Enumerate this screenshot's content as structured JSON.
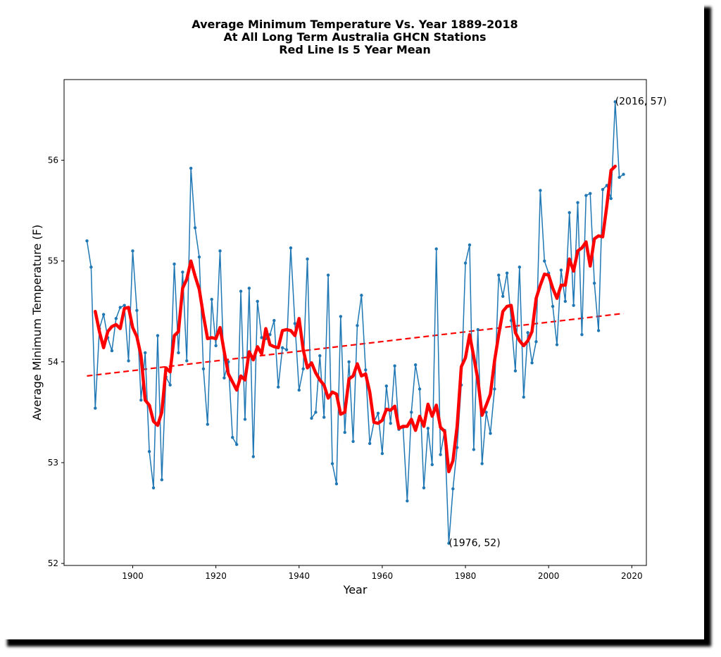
{
  "chart_data": {
    "type": "line",
    "title": [
      "Average Minimum Temperature Vs. Year 1889-2018",
      "At All Long Term Australia GHCN Stations",
      "Red Line Is 5 Year Mean"
    ],
    "xlabel": "Year",
    "ylabel": "Average Minimum Temperature (F)",
    "xlim": [
      1883.5,
      2023.5
    ],
    "ylim": [
      51.98,
      56.8
    ],
    "xticks": [
      1900,
      1920,
      1940,
      1960,
      1980,
      2000,
      2020
    ],
    "yticks": [
      52,
      53,
      54,
      55,
      56
    ],
    "grid": false,
    "x": [
      1889,
      1890,
      1891,
      1892,
      1893,
      1894,
      1895,
      1896,
      1897,
      1898,
      1899,
      1900,
      1901,
      1902,
      1903,
      1904,
      1905,
      1906,
      1907,
      1908,
      1909,
      1910,
      1911,
      1912,
      1913,
      1914,
      1915,
      1916,
      1917,
      1918,
      1919,
      1920,
      1921,
      1922,
      1923,
      1924,
      1925,
      1926,
      1927,
      1928,
      1929,
      1930,
      1931,
      1932,
      1933,
      1934,
      1935,
      1936,
      1937,
      1938,
      1939,
      1940,
      1941,
      1942,
      1943,
      1944,
      1945,
      1946,
      1947,
      1948,
      1949,
      1950,
      1951,
      1952,
      1953,
      1954,
      1955,
      1956,
      1957,
      1958,
      1959,
      1960,
      1961,
      1962,
      1963,
      1964,
      1965,
      1966,
      1967,
      1968,
      1969,
      1970,
      1971,
      1972,
      1973,
      1974,
      1975,
      1976,
      1977,
      1978,
      1979,
      1980,
      1981,
      1982,
      1983,
      1984,
      1985,
      1986,
      1987,
      1988,
      1989,
      1990,
      1991,
      1992,
      1993,
      1994,
      1995,
      1996,
      1997,
      1998,
      1999,
      2000,
      2001,
      2002,
      2003,
      2004,
      2005,
      2006,
      2007,
      2008,
      2009,
      2010,
      2011,
      2012,
      2013,
      2014,
      2015,
      2016,
      2017,
      2018
    ],
    "series": [
      {
        "role": "annual",
        "color": "#1f77b4",
        "values": [
          55.2,
          54.94,
          53.54,
          54.33,
          54.47,
          54.24,
          54.11,
          54.43,
          54.54,
          54.56,
          54.01,
          55.1,
          54.51,
          53.62,
          54.09,
          53.11,
          52.75,
          54.26,
          52.83,
          53.85,
          53.77,
          54.97,
          54.09,
          54.89,
          54.01,
          55.92,
          55.33,
          55.04,
          53.93,
          53.38,
          54.62,
          54.16,
          55.1,
          53.84,
          54.0,
          53.25,
          53.18,
          54.7,
          53.43,
          54.73,
          53.06,
          54.6,
          54.24,
          54.23,
          54.27,
          54.41,
          53.75,
          54.14,
          54.12,
          55.13,
          54.38,
          53.72,
          53.93,
          55.02,
          53.44,
          53.5,
          54.06,
          53.45,
          54.86,
          52.99,
          52.79,
          54.45,
          53.3,
          54.0,
          53.21,
          54.36,
          54.66,
          53.92,
          53.19,
          53.4,
          53.49,
          53.09,
          53.76,
          53.39,
          53.96,
          53.33,
          53.35,
          52.62,
          53.5,
          53.97,
          53.73,
          52.75,
          53.34,
          52.98,
          55.12,
          53.08,
          53.32,
          52.2,
          52.74,
          53.15,
          53.77,
          54.98,
          55.16,
          53.13,
          54.32,
          52.99,
          53.5,
          53.29,
          53.73,
          54.86,
          54.65,
          54.88,
          54.41,
          53.91,
          54.94,
          53.65,
          54.29,
          53.99,
          54.2,
          55.7,
          55.0,
          54.88,
          54.55,
          54.17,
          54.91,
          54.6,
          55.48,
          54.56,
          55.58,
          54.27,
          55.65,
          55.67,
          54.78,
          54.31,
          55.71,
          55.75,
          55.62,
          56.58,
          55.83,
          55.86
        ]
      },
      {
        "role": "5 year mean",
        "color": "#ff0000",
        "x": [
          1891,
          1892,
          1893,
          1894,
          1895,
          1896,
          1897,
          1898,
          1899,
          1900,
          1901,
          1902,
          1903,
          1904,
          1905,
          1906,
          1907,
          1908,
          1909,
          1910,
          1911,
          1912,
          1913,
          1914,
          1915,
          1916,
          1917,
          1918,
          1919,
          1920,
          1921,
          1922,
          1923,
          1924,
          1925,
          1926,
          1927,
          1928,
          1929,
          1930,
          1931,
          1932,
          1933,
          1934,
          1935,
          1936,
          1937,
          1938,
          1939,
          1940,
          1941,
          1942,
          1943,
          1944,
          1945,
          1946,
          1947,
          1948,
          1949,
          1950,
          1951,
          1952,
          1953,
          1954,
          1955,
          1956,
          1957,
          1958,
          1959,
          1960,
          1961,
          1962,
          1963,
          1964,
          1965,
          1966,
          1967,
          1968,
          1969,
          1970,
          1971,
          1972,
          1973,
          1974,
          1975,
          1976,
          1977,
          1978,
          1979,
          1980,
          1981,
          1982,
          1983,
          1984,
          1985,
          1986,
          1987,
          1988,
          1989,
          1990,
          1991,
          1992,
          1993,
          1994,
          1995,
          1996,
          1997,
          1998,
          1999,
          2000,
          2001,
          2002,
          2003,
          2004,
          2005,
          2006,
          2007,
          2008,
          2009,
          2010,
          2011,
          2012,
          2013,
          2014,
          2015,
          2016
        ],
        "values": [
          54.5,
          54.3,
          54.14,
          54.3,
          54.35,
          54.37,
          54.33,
          54.53,
          54.54,
          54.34,
          54.25,
          54.06,
          53.62,
          53.57,
          53.41,
          53.37,
          53.5,
          53.94,
          53.9,
          54.26,
          54.3,
          54.73,
          54.82,
          55.0,
          54.85,
          54.72,
          54.46,
          54.23,
          54.24,
          54.23,
          54.34,
          54.1,
          53.88,
          53.8,
          53.72,
          53.86,
          53.82,
          54.1,
          54.02,
          54.15,
          54.08,
          54.33,
          54.17,
          54.15,
          54.14,
          54.31,
          54.32,
          54.31,
          54.26,
          54.43,
          54.12,
          53.94,
          53.99,
          53.89,
          53.82,
          53.77,
          53.64,
          53.7,
          53.68,
          53.48,
          53.5,
          53.83,
          53.86,
          53.98,
          53.86,
          53.88,
          53.7,
          53.4,
          53.39,
          53.42,
          53.53,
          53.52,
          53.56,
          53.34,
          53.36,
          53.36,
          53.43,
          53.32,
          53.46,
          53.36,
          53.58,
          53.46,
          53.57,
          53.35,
          53.31,
          52.91,
          53.02,
          53.36,
          53.95,
          54.04,
          54.27,
          54.05,
          53.82,
          53.47,
          53.57,
          53.68,
          54.01,
          54.27,
          54.5,
          54.55,
          54.56,
          54.29,
          54.21,
          54.16,
          54.21,
          54.3,
          54.63,
          54.76,
          54.87,
          54.86,
          54.73,
          54.63,
          54.76,
          54.76,
          55.02,
          54.9,
          55.1,
          55.13,
          55.19,
          54.95,
          55.22,
          55.25,
          55.24,
          55.55,
          55.9,
          55.94
        ]
      },
      {
        "role": "trend",
        "color": "#ff0000",
        "x": [
          1889,
          2018
        ],
        "values": [
          53.86,
          54.48
        ]
      }
    ],
    "annotations": [
      {
        "text": "(2016, 57)",
        "x": 2016,
        "y": 56.58
      },
      {
        "text": "(1976, 52)",
        "x": 1976,
        "y": 52.2
      }
    ]
  }
}
